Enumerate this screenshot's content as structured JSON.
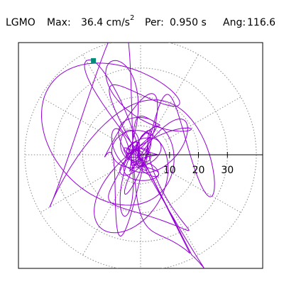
{
  "header": {
    "station": "LGMO",
    "max_label": "Max:",
    "max_value": "36.4",
    "max_unit": "cm/s",
    "max_unit_exp": "2",
    "per_label": "Per:",
    "per_value": "0.950",
    "per_unit": "s",
    "ang_label": "Ang:",
    "ang_value": "116.6"
  },
  "chart_data": {
    "type": "polar-orbit",
    "title": "",
    "xlabel": "",
    "ylabel": "",
    "radial_ticks": [
      10,
      20,
      30
    ],
    "radial_tick_labels": [
      "10",
      "20",
      "30"
    ],
    "rlim": [
      0,
      40
    ],
    "angular_grid_step_deg": 30,
    "grid": true,
    "colors": {
      "trace": "#9400d3",
      "peak_marker": "#008b74",
      "grid": "#888888",
      "frame": "#000000"
    },
    "peak": {
      "amplitude": 36.4,
      "angle_deg": 116.6
    }
  }
}
